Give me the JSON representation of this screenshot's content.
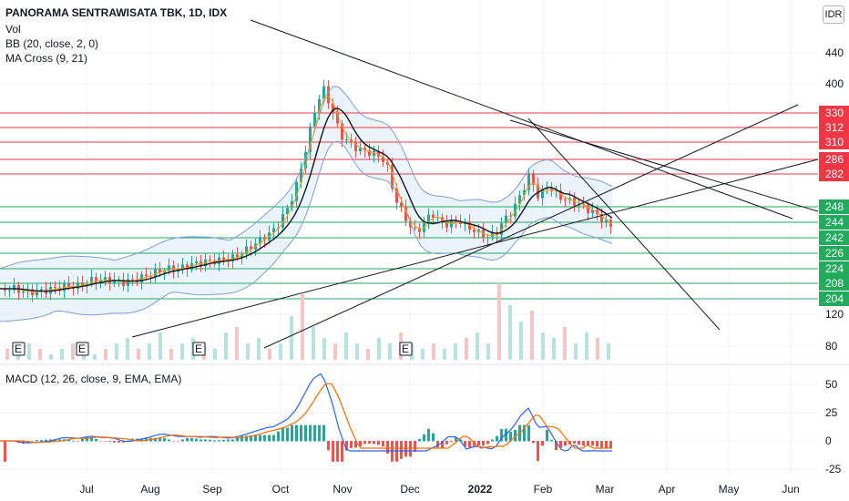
{
  "header": {
    "symbol": "PANORAMA SENTRAWISATA TBK, 1D, IDX",
    "currency": "IDR",
    "indicators": [
      "Vol",
      "BB (20, close, 2, 0)",
      "MA Cross (9, 21)"
    ],
    "macd": "MACD (12, 26, close, 9, EMA, EMA)"
  },
  "colors": {
    "up": "#26a69a",
    "down": "#ef5350",
    "trend": "#131722",
    "bb_fill": "#dbe9f8",
    "bb_line": "#7e9fd6",
    "ma9": "#f7a21b",
    "ma21": "#131722",
    "resistance": "#f23645",
    "support": "#22ab5c",
    "macd_line": "#2962ff",
    "signal_line": "#ff6d00"
  },
  "chart_data": {
    "type": "candlestick",
    "y_ticks": [
      440,
      400,
      120,
      80
    ],
    "y_tick_labels": [
      "440",
      "400",
      "120",
      "80"
    ],
    "price_range_top": [
      470,
      370
    ],
    "price_range_bottom": [
      130,
      72
    ],
    "x_ticks": [
      "Jul",
      "Aug",
      "Sep",
      "Oct",
      "Nov",
      "Dec",
      "2022",
      "Feb",
      "Mar",
      "Apr",
      "May",
      "Jun"
    ],
    "resistance_levels": [
      "330",
      "312",
      "310",
      "286",
      "282"
    ],
    "support_levels": [
      "248",
      "244",
      "242",
      "226",
      "224",
      "208",
      "204"
    ],
    "earnings_markers": [
      "E",
      "E",
      "E",
      "E"
    ],
    "macd_ticks": [
      "50",
      "25",
      "0",
      "-25"
    ],
    "macd_range": [
      -30,
      65
    ],
    "price_path": [
      [
        0,
        206
      ],
      [
        14,
        206
      ],
      [
        28,
        203
      ],
      [
        43,
        204
      ],
      [
        58,
        206
      ],
      [
        72,
        208
      ],
      [
        85,
        208
      ],
      [
        100,
        213
      ],
      [
        117,
        213
      ],
      [
        135,
        211
      ],
      [
        150,
        214
      ],
      [
        165,
        218
      ],
      [
        180,
        222
      ],
      [
        195,
        222
      ],
      [
        210,
        226
      ],
      [
        225,
        228
      ],
      [
        240,
        229
      ],
      [
        255,
        231
      ],
      [
        270,
        238
      ],
      [
        285,
        246
      ],
      [
        300,
        254
      ],
      [
        315,
        272
      ],
      [
        325,
        292
      ],
      [
        335,
        320
      ],
      [
        345,
        370
      ],
      [
        353,
        395
      ],
      [
        362,
        370
      ],
      [
        372,
        334
      ],
      [
        382,
        324
      ],
      [
        392,
        315
      ],
      [
        402,
        312
      ],
      [
        412,
        308
      ],
      [
        422,
        300
      ],
      [
        432,
        280
      ],
      [
        442,
        266
      ],
      [
        452,
        252
      ],
      [
        462,
        256
      ],
      [
        472,
        268
      ],
      [
        482,
        260
      ],
      [
        492,
        258
      ],
      [
        502,
        262
      ],
      [
        512,
        256
      ],
      [
        522,
        252
      ],
      [
        532,
        248
      ],
      [
        542,
        250
      ],
      [
        552,
        262
      ],
      [
        562,
        270
      ],
      [
        572,
        286
      ],
      [
        580,
        298
      ],
      [
        590,
        280
      ],
      [
        600,
        290
      ],
      [
        610,
        282
      ],
      [
        620,
        278
      ],
      [
        630,
        276
      ],
      [
        640,
        272
      ],
      [
        650,
        268
      ],
      [
        660,
        262
      ],
      [
        670,
        256
      ]
    ],
    "volume_bars": [
      2,
      1,
      3,
      2,
      1,
      2,
      3,
      2,
      1,
      2,
      3,
      4,
      2,
      3,
      5,
      2,
      3,
      4,
      3,
      2,
      5,
      6,
      3,
      4,
      2,
      3,
      8,
      12,
      6,
      4,
      3,
      5,
      3,
      2,
      4,
      3,
      5,
      3,
      2,
      3,
      2,
      3,
      4,
      5,
      3,
      14,
      10,
      7,
      9,
      5,
      4,
      6,
      3,
      5,
      4,
      3
    ]
  }
}
